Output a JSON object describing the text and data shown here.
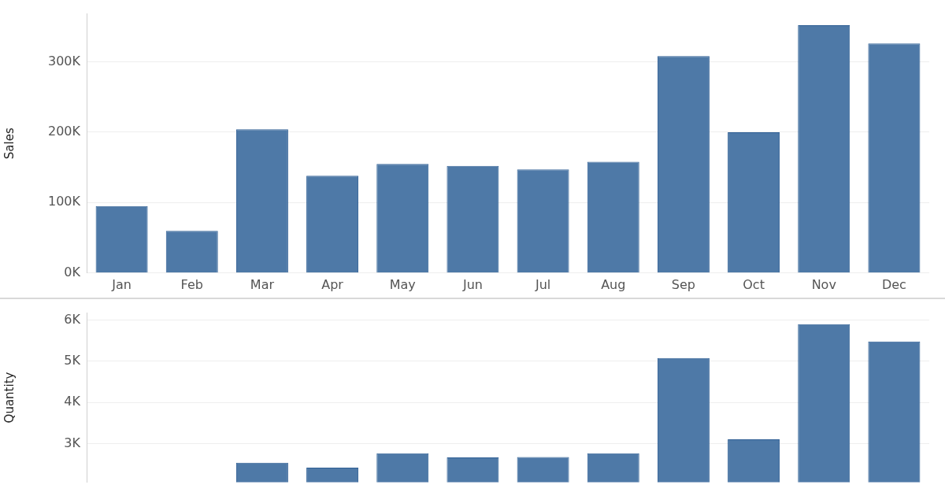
{
  "chart_data": [
    {
      "type": "bar",
      "ylabel": "Sales",
      "categories": [
        "Jan",
        "Feb",
        "Mar",
        "Apr",
        "May",
        "Jun",
        "Jul",
        "Aug",
        "Sep",
        "Oct",
        "Nov",
        "Dec"
      ],
      "values": [
        95000,
        60000,
        204000,
        138000,
        155000,
        152000,
        147000,
        158000,
        308000,
        200000,
        352000,
        326000
      ],
      "color": "#4e79a7",
      "ylim": [
        0,
        368000
      ],
      "yticks": [
        {
          "value": 0,
          "label": "0K"
        },
        {
          "value": 100000,
          "label": "100K"
        },
        {
          "value": 200000,
          "label": "200K"
        },
        {
          "value": 300000,
          "label": "300K"
        }
      ],
      "grid": "y"
    },
    {
      "type": "bar",
      "ylabel": "Quantity",
      "categories": [
        null,
        null,
        null,
        null,
        null,
        null,
        null,
        null,
        null,
        null,
        null,
        null
      ],
      "values": [
        null,
        null,
        2540,
        2420,
        2770,
        2670,
        2680,
        2770,
        5080,
        3110,
        5900,
        5480
      ],
      "color": "#4e79a7",
      "ylim": [
        2070,
        6170
      ],
      "yticks": [
        {
          "value": 3000,
          "label": "3K"
        },
        {
          "value": 4000,
          "label": "4K"
        },
        {
          "value": 5000,
          "label": "5K"
        },
        {
          "value": 6000,
          "label": "6K"
        }
      ],
      "grid": "y",
      "tick_labels": "y"
    }
  ]
}
